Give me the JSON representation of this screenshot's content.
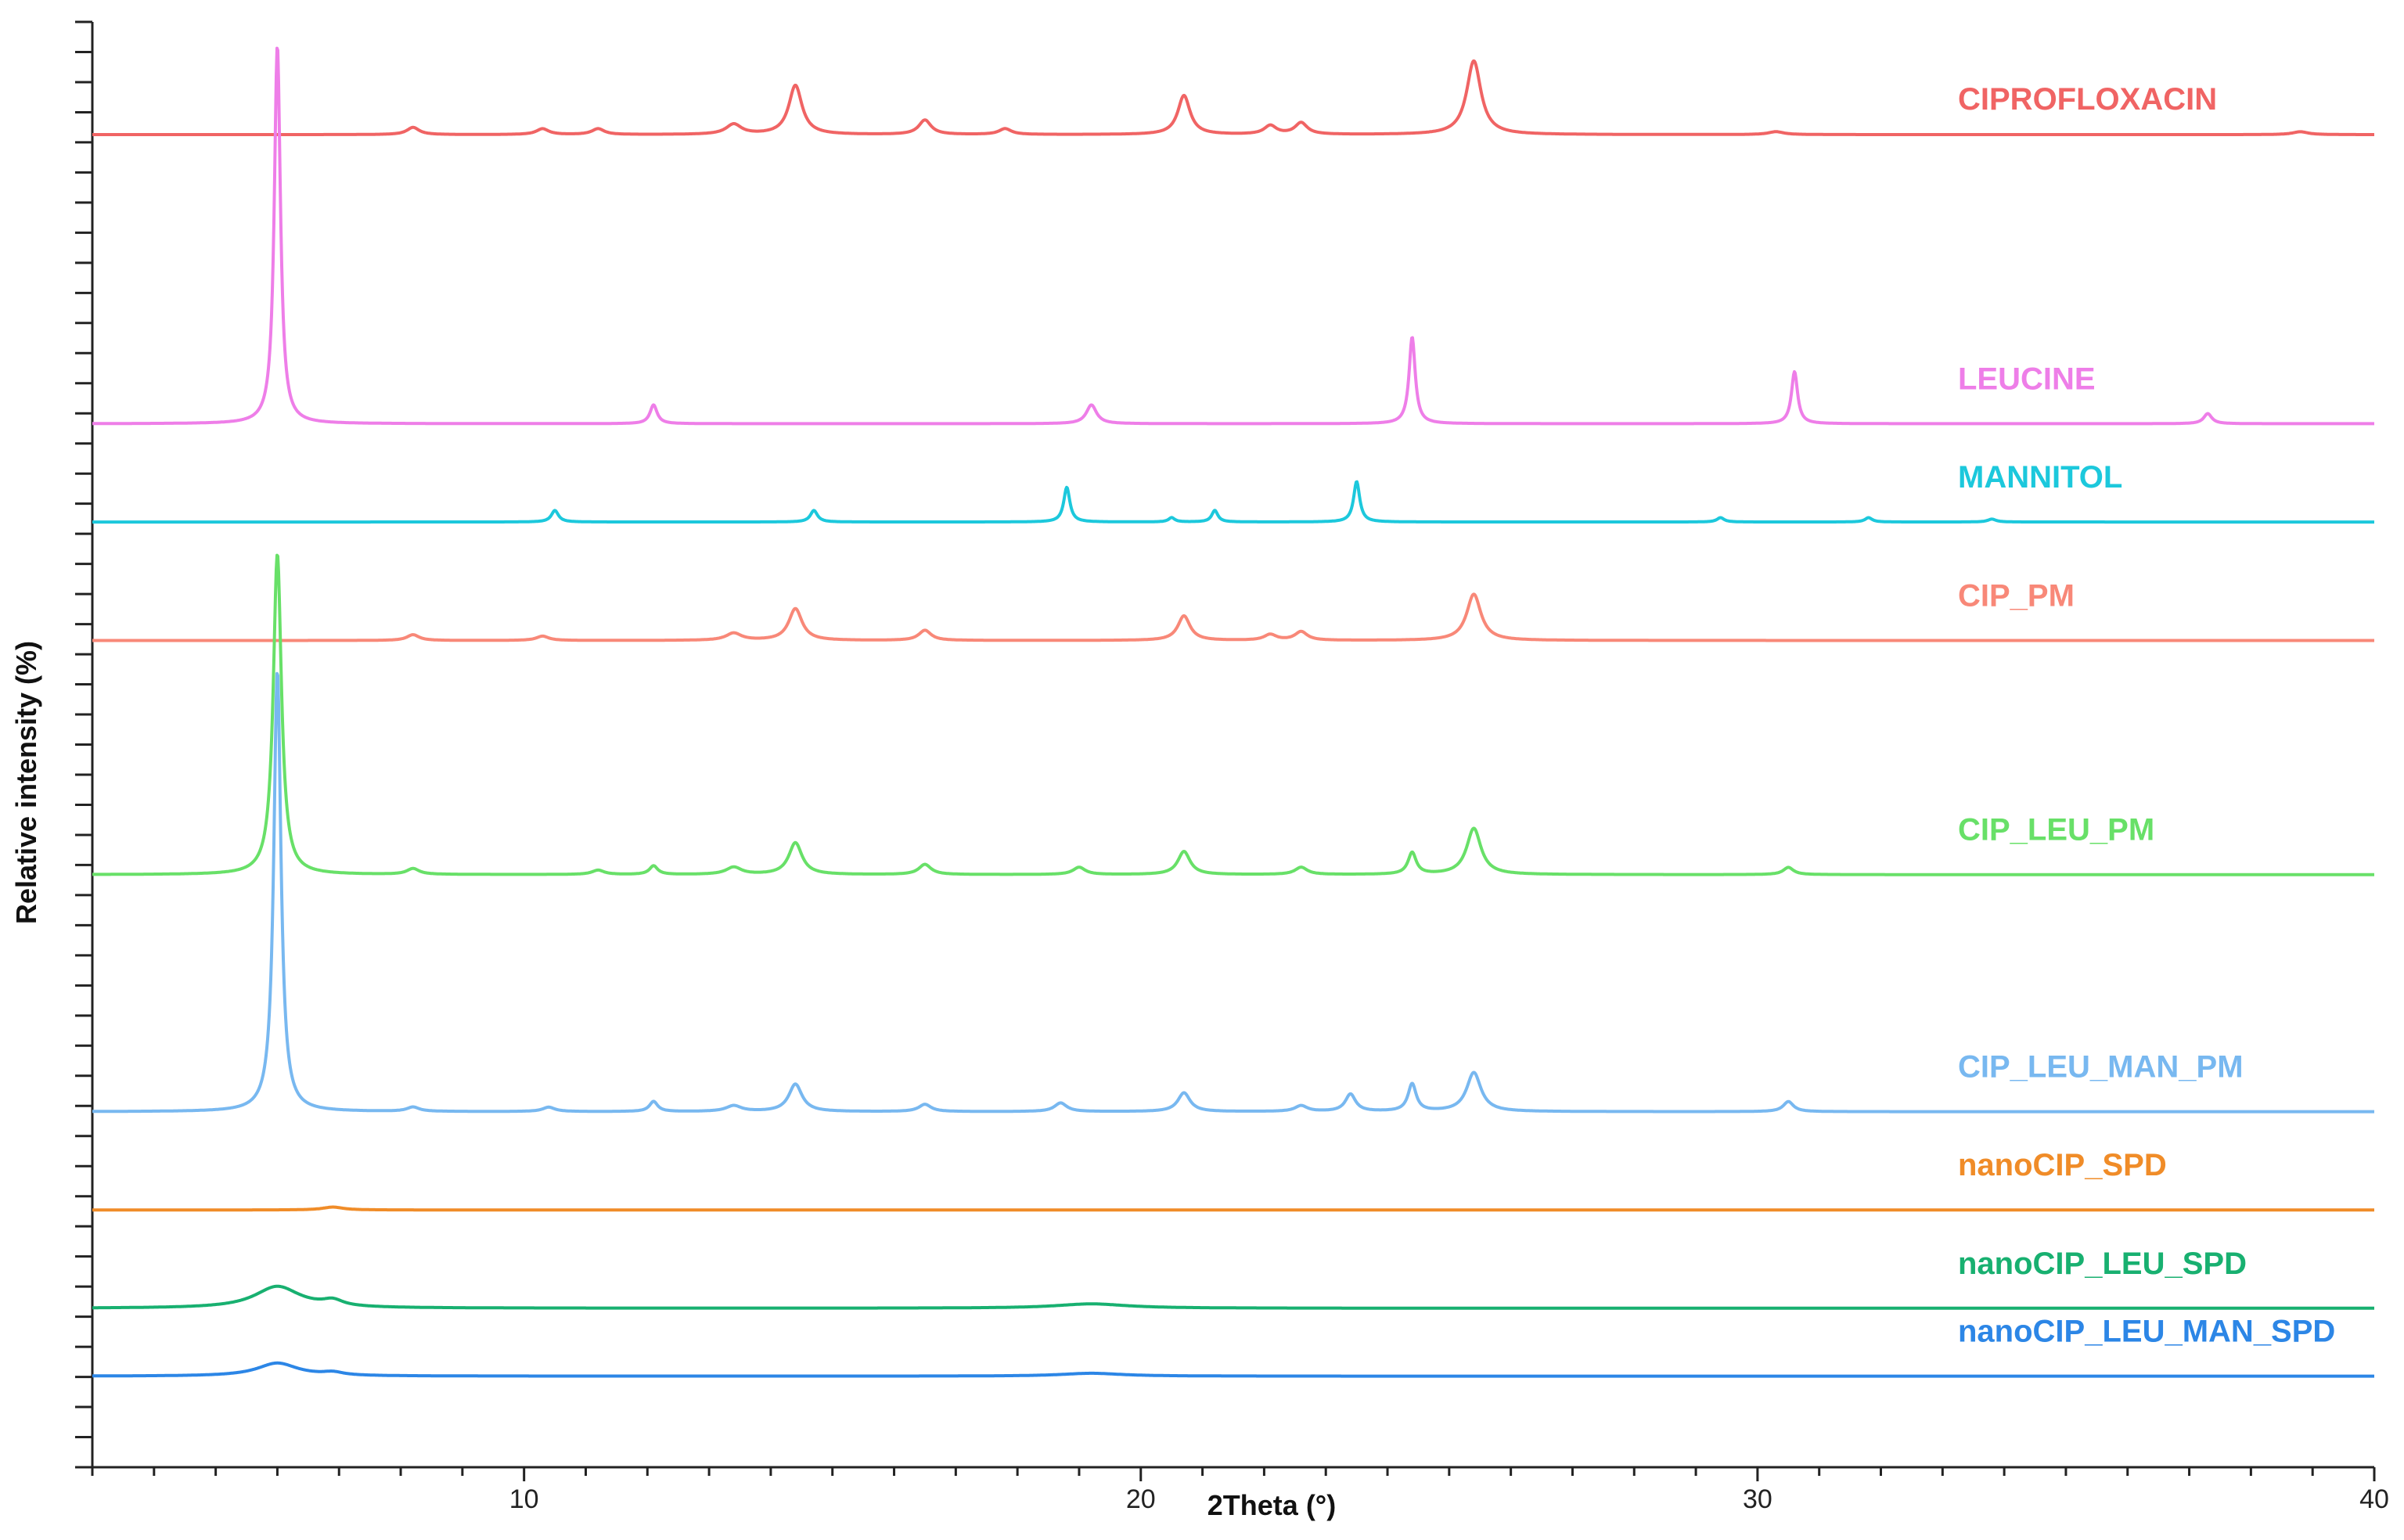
{
  "chart_data": {
    "type": "line",
    "title": "",
    "xlabel": "2Theta (°)",
    "ylabel": "Relative intensity (%)",
    "xlim": [
      3,
      40
    ],
    "x_ticks": [
      10,
      20,
      30,
      40
    ],
    "x_tick_labels": [
      "10",
      "20",
      "30",
      "40"
    ],
    "grid": false,
    "legend": "inline-labels-right",
    "series": [
      {
        "name": "CIPROFLOXACIN",
        "color": "#f06464",
        "baseline": 0.922,
        "peaks": [
          [
            8.2,
            0.005,
            0.12
          ],
          [
            10.3,
            0.004,
            0.12
          ],
          [
            11.2,
            0.004,
            0.12
          ],
          [
            13.4,
            0.007,
            0.15
          ],
          [
            14.4,
            0.034,
            0.13
          ],
          [
            16.5,
            0.01,
            0.12
          ],
          [
            17.8,
            0.004,
            0.12
          ],
          [
            20.7,
            0.027,
            0.12
          ],
          [
            22.1,
            0.006,
            0.12
          ],
          [
            22.6,
            0.008,
            0.12
          ],
          [
            25.4,
            0.051,
            0.14
          ],
          [
            30.3,
            0.002,
            0.15
          ],
          [
            38.8,
            0.002,
            0.15
          ]
        ]
      },
      {
        "name": "LEUCINE",
        "color": "#ee7ee8",
        "baseline": 0.722,
        "peaks": [
          [
            6.0,
            0.262,
            0.06
          ],
          [
            12.1,
            0.013,
            0.07
          ],
          [
            19.2,
            0.013,
            0.1
          ],
          [
            24.4,
            0.06,
            0.06
          ],
          [
            30.6,
            0.036,
            0.06
          ],
          [
            37.3,
            0.007,
            0.08
          ]
        ]
      },
      {
        "name": "MANNITOL",
        "color": "#1cc8dc",
        "baseline": 0.654,
        "peaks": [
          [
            10.5,
            0.008,
            0.07
          ],
          [
            14.7,
            0.008,
            0.07
          ],
          [
            18.8,
            0.024,
            0.06
          ],
          [
            20.5,
            0.003,
            0.06
          ],
          [
            21.2,
            0.008,
            0.06
          ],
          [
            23.5,
            0.028,
            0.06
          ],
          [
            29.4,
            0.003,
            0.07
          ],
          [
            31.8,
            0.003,
            0.07
          ],
          [
            33.8,
            0.002,
            0.08
          ]
        ]
      },
      {
        "name": "CIP_PM",
        "color": "#f88878",
        "baseline": 0.572,
        "peaks": [
          [
            8.2,
            0.004,
            0.12
          ],
          [
            10.3,
            0.003,
            0.12
          ],
          [
            13.4,
            0.005,
            0.15
          ],
          [
            14.4,
            0.022,
            0.13
          ],
          [
            16.5,
            0.007,
            0.12
          ],
          [
            20.7,
            0.017,
            0.12
          ],
          [
            22.1,
            0.004,
            0.12
          ],
          [
            22.6,
            0.006,
            0.12
          ],
          [
            25.4,
            0.032,
            0.14
          ]
        ]
      },
      {
        "name": "CIP_LEU_PM",
        "color": "#68e068",
        "baseline": 0.41,
        "peaks": [
          [
            6.0,
            0.222,
            0.08
          ],
          [
            8.2,
            0.004,
            0.12
          ],
          [
            11.2,
            0.003,
            0.12
          ],
          [
            12.1,
            0.006,
            0.08
          ],
          [
            13.4,
            0.005,
            0.15
          ],
          [
            14.4,
            0.022,
            0.13
          ],
          [
            16.5,
            0.007,
            0.12
          ],
          [
            19.0,
            0.005,
            0.12
          ],
          [
            20.7,
            0.016,
            0.12
          ],
          [
            22.6,
            0.005,
            0.12
          ],
          [
            24.4,
            0.015,
            0.08
          ],
          [
            25.4,
            0.032,
            0.14
          ],
          [
            30.5,
            0.005,
            0.1
          ]
        ]
      },
      {
        "name": "CIP_LEU_MAN_PM",
        "color": "#78b8f0",
        "baseline": 0.246,
        "peaks": [
          [
            6.0,
            0.305,
            0.07
          ],
          [
            8.2,
            0.003,
            0.12
          ],
          [
            10.4,
            0.003,
            0.12
          ],
          [
            12.1,
            0.007,
            0.08
          ],
          [
            13.4,
            0.004,
            0.15
          ],
          [
            14.4,
            0.019,
            0.13
          ],
          [
            16.5,
            0.005,
            0.12
          ],
          [
            18.7,
            0.006,
            0.12
          ],
          [
            20.7,
            0.013,
            0.12
          ],
          [
            22.6,
            0.004,
            0.12
          ],
          [
            23.4,
            0.012,
            0.1
          ],
          [
            24.4,
            0.019,
            0.08
          ],
          [
            25.4,
            0.027,
            0.14
          ],
          [
            30.5,
            0.007,
            0.1
          ]
        ]
      },
      {
        "name": "nanoCIP_SPD",
        "color": "#f08c28",
        "baseline": 0.178,
        "peaks": [
          [
            6.9,
            0.002,
            0.2
          ]
        ]
      },
      {
        "name": "nanoCIP_LEU_SPD",
        "color": "#18b070",
        "baseline": 0.11,
        "peaks": [
          [
            6.0,
            0.015,
            0.45
          ],
          [
            6.9,
            0.004,
            0.2
          ],
          [
            19.2,
            0.003,
            0.7
          ]
        ]
      },
      {
        "name": "nanoCIP_LEU_MAN_SPD",
        "color": "#2c86e6",
        "baseline": 0.063,
        "peaks": [
          [
            6.0,
            0.009,
            0.4
          ],
          [
            6.9,
            0.002,
            0.2
          ],
          [
            19.2,
            0.002,
            0.6
          ]
        ]
      }
    ]
  }
}
